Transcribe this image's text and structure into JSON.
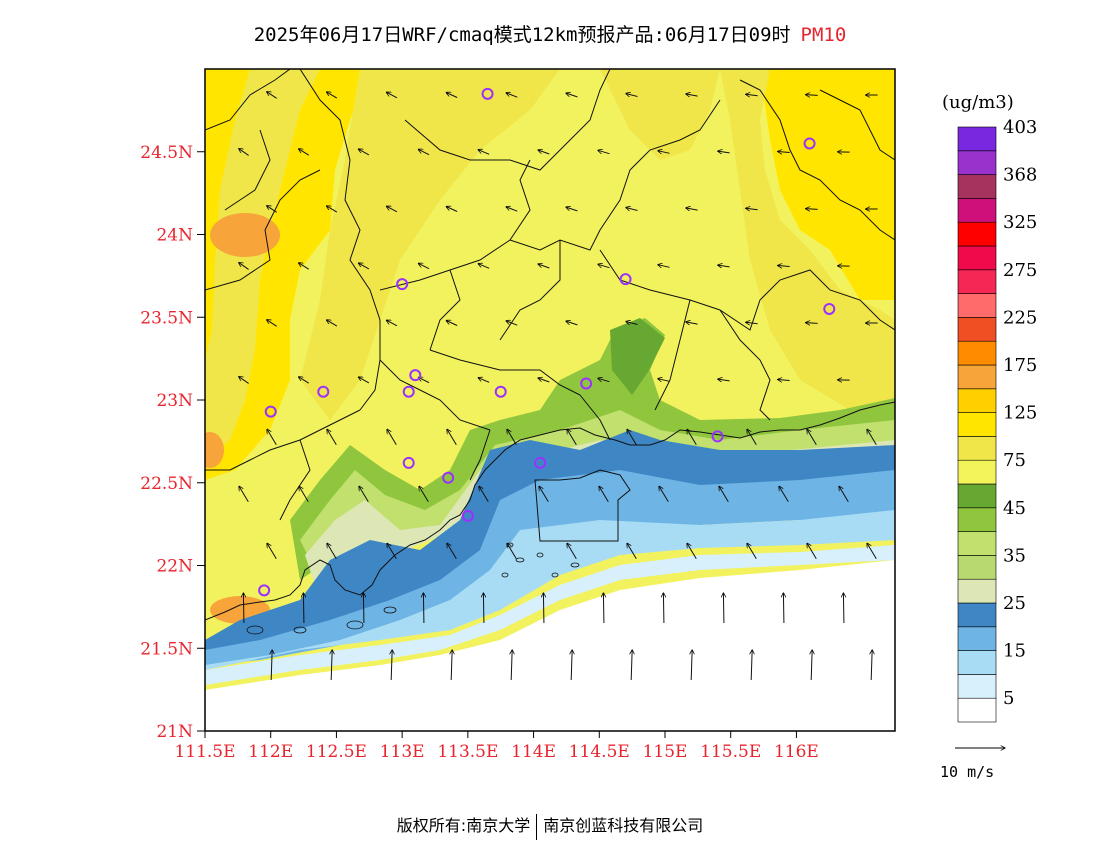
{
  "title": {
    "main": "2025年06月17日WRF/cmaq模式12km预报产品:06月17日09时",
    "species": "PM10"
  },
  "map": {
    "lon_range": [
      111.5,
      116.75
    ],
    "lat_range": [
      21.0,
      25.0
    ],
    "lat_ticks": [
      {
        "value": 21.0,
        "label": "21N"
      },
      {
        "value": 21.5,
        "label": "21.5N"
      },
      {
        "value": 22.0,
        "label": "22N"
      },
      {
        "value": 22.5,
        "label": "22.5N"
      },
      {
        "value": 23.0,
        "label": "23N"
      },
      {
        "value": 23.5,
        "label": "23.5N"
      },
      {
        "value": 24.0,
        "label": "24N"
      },
      {
        "value": 24.5,
        "label": "24.5N"
      }
    ],
    "lon_ticks": [
      {
        "value": 111.5,
        "label": "111.5E"
      },
      {
        "value": 112.0,
        "label": "112E"
      },
      {
        "value": 112.5,
        "label": "112.5E"
      },
      {
        "value": 113.0,
        "label": "113E"
      },
      {
        "value": 113.5,
        "label": "113.5E"
      },
      {
        "value": 114.0,
        "label": "114E"
      },
      {
        "value": 114.5,
        "label": "114.5E"
      },
      {
        "value": 115.0,
        "label": "115E"
      },
      {
        "value": 115.5,
        "label": "115.5E"
      },
      {
        "value": 116.0,
        "label": "116E"
      }
    ],
    "stations": [
      {
        "lon": 113.65,
        "lat": 24.85
      },
      {
        "lon": 116.1,
        "lat": 24.55
      },
      {
        "lon": 113.0,
        "lat": 23.7
      },
      {
        "lon": 114.7,
        "lat": 23.73
      },
      {
        "lon": 116.25,
        "lat": 23.55
      },
      {
        "lon": 112.4,
        "lat": 23.05
      },
      {
        "lon": 113.1,
        "lat": 23.15
      },
      {
        "lon": 113.05,
        "lat": 23.05
      },
      {
        "lon": 113.75,
        "lat": 23.05
      },
      {
        "lon": 114.4,
        "lat": 23.1
      },
      {
        "lon": 112.0,
        "lat": 22.93
      },
      {
        "lon": 115.4,
        "lat": 22.78
      },
      {
        "lon": 113.05,
        "lat": 22.62
      },
      {
        "lon": 113.35,
        "lat": 22.53
      },
      {
        "lon": 114.05,
        "lat": 22.62
      },
      {
        "lon": 113.5,
        "lat": 22.3
      },
      {
        "lon": 111.95,
        "lat": 21.85
      }
    ],
    "colors": {
      "fill_high": "#ffe500",
      "fill_mid": "#f0e64a",
      "fill_low": "#f2f25e",
      "orange": "#f7a53a",
      "sea": "#ffffff",
      "station": "#9b30ff"
    }
  },
  "legend": {
    "unit": "(ug/m3)",
    "colors": [
      "#ffffff",
      "#d8f0fb",
      "#a8dcf5",
      "#6eb5e6",
      "#3f86c4",
      "#dde7b6",
      "#b7d96f",
      "#c1e06d",
      "#8fc63e",
      "#66a832",
      "#f3f35a",
      "#f0e64a",
      "#ffe500",
      "#ffd000",
      "#f7a53a",
      "#ff8c00",
      "#f04e23",
      "#ff6a6a",
      "#f52755",
      "#f00a4b",
      "#ff0000",
      "#d0107a",
      "#a5335d",
      "#9932cc",
      "#7a28e0"
    ],
    "labels": [
      "5",
      "15",
      "25",
      "35",
      "45",
      "75",
      "125",
      "175",
      "225",
      "275",
      "325",
      "368",
      "403"
    ]
  },
  "wind_reference": {
    "label": "10 m/s"
  },
  "copyright": {
    "prefix": "版权所有:",
    "org1": "南京大学",
    "org2": "南京创蓝科技有限公司"
  }
}
